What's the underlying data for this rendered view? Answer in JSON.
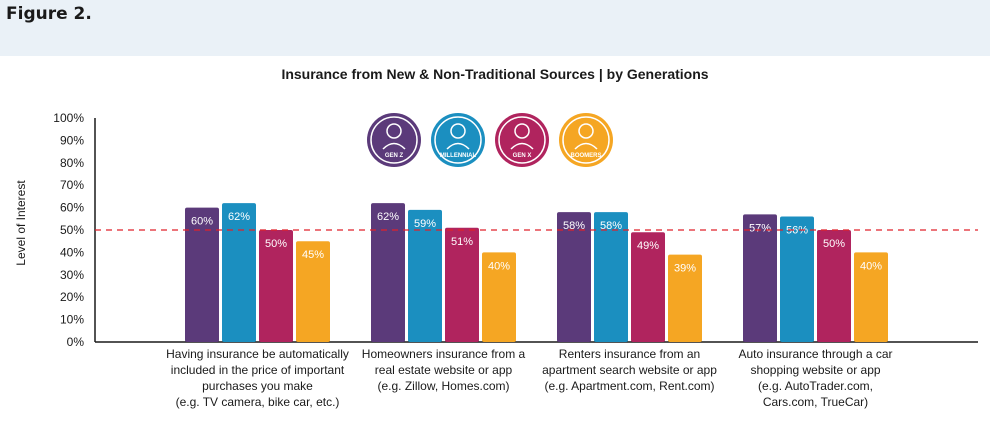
{
  "figure_label": "Figure 2.",
  "chart_data": {
    "type": "bar",
    "title": "Insurance from New & Non-Traditional Sources | by Generations",
    "ylabel": "Level of Interest",
    "xlabel": "",
    "ylim": [
      0,
      100
    ],
    "yticks": [
      "0%",
      "10%",
      "20%",
      "30%",
      "40%",
      "50%",
      "60%",
      "70%",
      "80%",
      "90%",
      "100%"
    ],
    "reference_line": 50,
    "categories": [
      [
        "Having insurance be automatically",
        "included in the price of important",
        "purchases you make",
        "(e.g. TV camera, bike car, etc.)"
      ],
      [
        "Homeowners insurance from a",
        "real estate website or app",
        "(e.g. Zillow, Homes.com)"
      ],
      [
        "Renters insurance from an",
        "apartment search website or app",
        "(e.g. Apartment.com, Rent.com)"
      ],
      [
        "Auto insurance through a car",
        "shopping website or app",
        "(e.g. AutoTrader.com,",
        "Cars.com, TrueCar)"
      ]
    ],
    "series": [
      {
        "name": "GEN Z",
        "color": "#5b3a7a",
        "values": [
          60,
          62,
          58,
          57
        ]
      },
      {
        "name": "MILLENNIAL",
        "color": "#1b8fc0",
        "values": [
          62,
          59,
          58,
          56
        ]
      },
      {
        "name": "GEN X",
        "color": "#b0245e",
        "values": [
          50,
          51,
          49,
          50
        ]
      },
      {
        "name": "BOOMERS",
        "color": "#f5a623",
        "values": [
          45,
          40,
          39,
          40
        ]
      }
    ],
    "legend_placement": "top-center",
    "grid": false
  }
}
